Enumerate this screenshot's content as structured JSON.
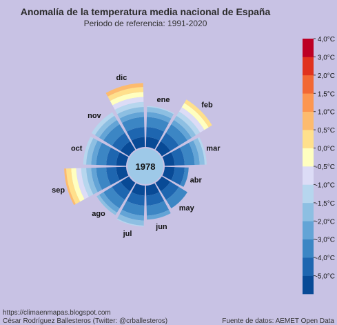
{
  "title": "Anomalía de la temperatura media nacional de España",
  "subtitle": "Periodo de referencia: 1991-2020",
  "credits": {
    "blog": "https://climaenmapas.blogspot.com",
    "author": "César Rodríguez Ballesteros (Twitter: @crballesteros)",
    "source": "Fuente de datos: AEMET Open Data"
  },
  "chart_data": {
    "type": "polar-bar",
    "year": "1978",
    "categories": [
      "ene",
      "feb",
      "mar",
      "abr",
      "may",
      "jun",
      "jul",
      "ago",
      "sep",
      "oct",
      "nov",
      "dic"
    ],
    "values": [
      -0.9,
      0.9,
      -0.8,
      -2.6,
      -2.0,
      -1.6,
      -0.9,
      -1.2,
      1.2,
      -0.7,
      -0.6,
      1.4
    ],
    "value_unit": "°C",
    "rmin": -5.0,
    "colorbar": {
      "ticks": [
        "4,0°C",
        "3,0°C",
        "2,0°C",
        "1,5°C",
        "1,0°C",
        "0,5°C",
        "0,0°C",
        "-0,5°C",
        "-1,0°C",
        "-1,5°C",
        "-2,0°C",
        "-3,0°C",
        "-4,0°C",
        "-5,0°C"
      ],
      "bins": [
        {
          "from": -5.0,
          "to": -4.0,
          "color": "#084a96"
        },
        {
          "from": -4.0,
          "to": -3.0,
          "color": "#1e66b0"
        },
        {
          "from": -3.0,
          "to": -2.0,
          "color": "#3c86c4"
        },
        {
          "from": -2.0,
          "to": -1.5,
          "color": "#63a4d6"
        },
        {
          "from": -1.5,
          "to": -1.0,
          "color": "#8dbfe2"
        },
        {
          "from": -1.0,
          "to": -0.5,
          "color": "#b6d6ee"
        },
        {
          "from": -0.5,
          "to": 0.0,
          "color": "#dcdcf6"
        },
        {
          "from": 0.0,
          "to": 0.5,
          "color": "#ffffc0"
        },
        {
          "from": 0.5,
          "to": 1.0,
          "color": "#ffe08c"
        },
        {
          "from": 1.0,
          "to": 1.5,
          "color": "#fdbb6e"
        },
        {
          "from": 1.5,
          "to": 2.0,
          "color": "#fc9650"
        },
        {
          "from": 2.0,
          "to": 3.0,
          "color": "#f26834"
        },
        {
          "from": 3.0,
          "to": 4.0,
          "color": "#e0321e"
        },
        {
          "from": 4.0,
          "to": 5.0,
          "color": "#bd0024"
        }
      ]
    }
  }
}
